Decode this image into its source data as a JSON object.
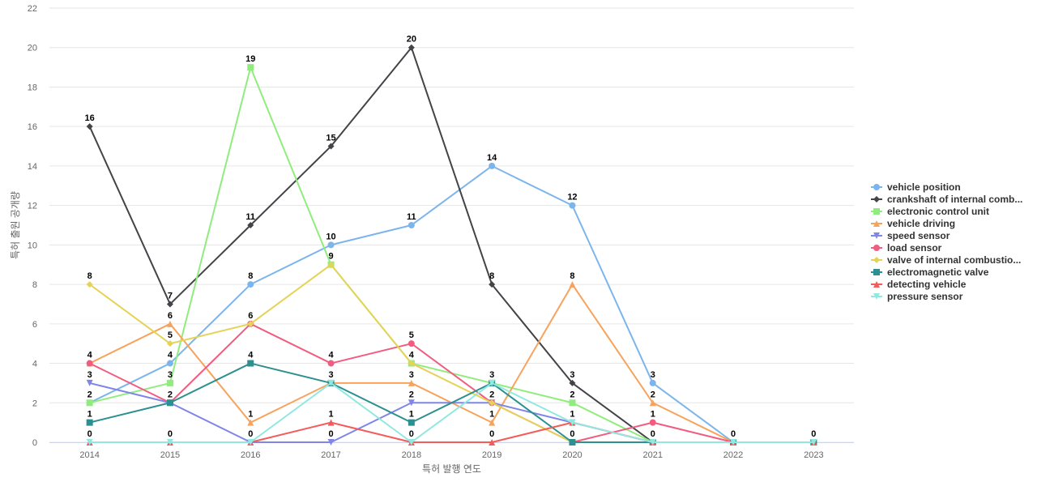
{
  "chart_data": {
    "type": "line",
    "title": "",
    "xlabel": "특허 발행 연도",
    "ylabel": "특허 출원 공개량",
    "x": [
      "2014",
      "2015",
      "2016",
      "2017",
      "2018",
      "2019",
      "2020",
      "2021",
      "2022",
      "2023"
    ],
    "ylim": [
      0,
      22
    ],
    "yticks": [
      0,
      2,
      4,
      6,
      8,
      10,
      12,
      14,
      16,
      18,
      20,
      22
    ],
    "grid": true,
    "legend_position": "right",
    "series": [
      {
        "name": "vehicle position",
        "color": "#7cb5ec",
        "marker": "circle",
        "values": [
          2,
          4,
          8,
          10,
          11,
          14,
          12,
          3,
          0,
          0
        ]
      },
      {
        "name": "crankshaft of internal comb...",
        "color": "#434348",
        "marker": "diamond",
        "values": [
          16,
          7,
          11,
          15,
          20,
          8,
          3,
          0,
          0,
          0
        ]
      },
      {
        "name": "electronic control unit",
        "color": "#90ed7d",
        "marker": "square",
        "values": [
          2,
          3,
          19,
          9,
          4,
          3,
          2,
          0,
          0,
          0
        ]
      },
      {
        "name": "vehicle driving",
        "color": "#f7a35c",
        "marker": "triangle",
        "values": [
          4,
          6,
          1,
          3,
          3,
          1,
          8,
          2,
          0,
          0
        ]
      },
      {
        "name": "speed sensor",
        "color": "#8085e9",
        "marker": "triangle-down",
        "values": [
          3,
          2,
          0,
          0,
          2,
          2,
          1,
          0,
          0,
          0
        ]
      },
      {
        "name": "load sensor",
        "color": "#f15c80",
        "marker": "circle",
        "values": [
          4,
          2,
          6,
          4,
          5,
          2,
          0,
          1,
          0,
          0
        ]
      },
      {
        "name": "valve of internal combustio...",
        "color": "#e4d354",
        "marker": "diamond",
        "values": [
          8,
          5,
          6,
          9,
          4,
          2,
          0,
          0,
          0,
          0
        ]
      },
      {
        "name": "electromagnetic valve",
        "color": "#2b908f",
        "marker": "square",
        "values": [
          1,
          2,
          4,
          3,
          1,
          3,
          0,
          0,
          0,
          0
        ]
      },
      {
        "name": "detecting vehicle",
        "color": "#f45b5b",
        "marker": "triangle",
        "values": [
          0,
          0,
          0,
          1,
          0,
          0,
          1,
          0,
          0,
          0
        ]
      },
      {
        "name": "pressure sensor",
        "color": "#91e8e1",
        "marker": "triangle-down",
        "values": [
          0,
          0,
          0,
          3,
          0,
          3,
          1,
          0,
          0,
          0
        ]
      }
    ],
    "data_labels": [
      {
        "series": 0,
        "points": [
          2,
          4,
          8,
          10,
          11,
          14,
          12,
          3,
          0,
          0
        ]
      },
      {
        "series": 1,
        "points": [
          16,
          7,
          11,
          15,
          20,
          8,
          3,
          0,
          0,
          0
        ]
      },
      {
        "series": 2,
        "points": [
          2,
          3,
          19,
          9,
          4,
          3,
          2,
          0,
          0,
          0
        ]
      },
      {
        "series": 3,
        "points": [
          4,
          6,
          1,
          3,
          3,
          1,
          8,
          2,
          0,
          0
        ]
      },
      {
        "series": 4,
        "points": [
          3,
          2,
          0,
          0,
          2,
          2,
          1,
          0,
          0,
          0
        ]
      },
      {
        "series": 5,
        "points": [
          4,
          2,
          6,
          4,
          5,
          2,
          0,
          1,
          0,
          0
        ]
      },
      {
        "series": 6,
        "points": [
          8,
          5,
          6,
          9,
          4,
          2,
          0,
          0,
          0,
          0
        ]
      },
      {
        "series": 7,
        "points": [
          1,
          2,
          4,
          3,
          1,
          3,
          0,
          0,
          0,
          0
        ]
      },
      {
        "series": 8,
        "points": [
          0,
          0,
          0,
          1,
          0,
          0,
          1,
          0,
          0,
          0
        ]
      },
      {
        "series": 9,
        "points": [
          0,
          0,
          0,
          3,
          0,
          3,
          1,
          0,
          0,
          0
        ]
      }
    ]
  }
}
